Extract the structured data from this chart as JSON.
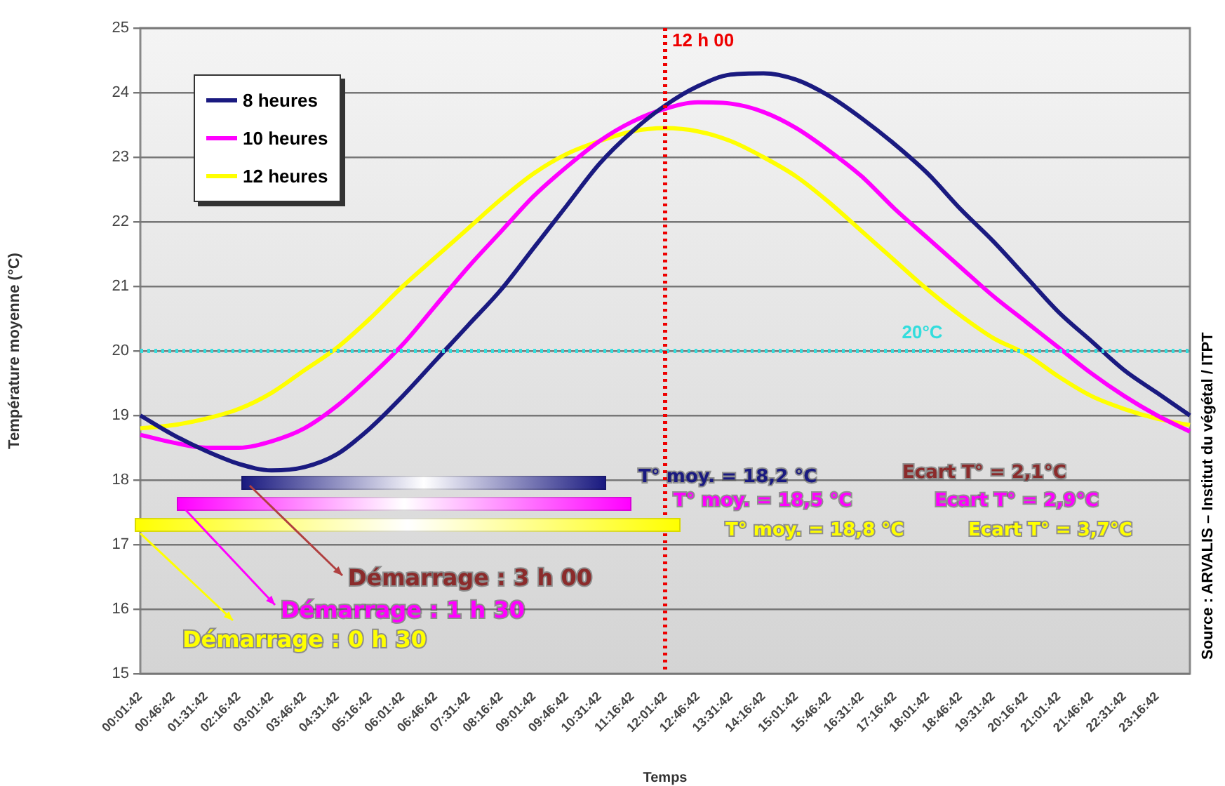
{
  "chart_data": {
    "type": "line",
    "xlabel": "Temps",
    "ylabel": "Température moyenne (°C)",
    "categories": [
      "00:01:42",
      "00:46:42",
      "01:31:42",
      "02:16:42",
      "03:01:42",
      "03:46:42",
      "04:31:42",
      "05:16:42",
      "06:01:42",
      "06:46:42",
      "07:31:42",
      "08:16:42",
      "09:01:42",
      "09:46:42",
      "10:31:42",
      "11:16:42",
      "12:01:42",
      "12:46:42",
      "13:31:42",
      "14:16:42",
      "15:01:42",
      "15:46:42",
      "16:31:42",
      "17:16:42",
      "18:01:42",
      "18:46:42",
      "19:31:42",
      "20:16:42",
      "21:01:42",
      "21:46:42",
      "22:31:42",
      "23:16:42",
      null
    ],
    "series": [
      {
        "name": "8 heures",
        "color": "#1a1a80",
        "values": [
          19.0,
          18.7,
          18.45,
          18.25,
          18.15,
          18.2,
          18.4,
          18.8,
          19.3,
          19.85,
          20.4,
          20.95,
          21.6,
          22.25,
          22.9,
          23.4,
          23.8,
          24.1,
          24.28,
          24.3,
          24.2,
          23.95,
          23.6,
          23.2,
          22.75,
          22.2,
          21.7,
          21.15,
          20.6,
          20.15,
          19.7,
          19.35,
          19.0
        ]
      },
      {
        "name": "10 heures",
        "color": "#ff00ff",
        "values": [
          18.7,
          18.58,
          18.5,
          18.5,
          18.6,
          18.8,
          19.15,
          19.6,
          20.1,
          20.7,
          21.3,
          21.85,
          22.4,
          22.85,
          23.25,
          23.55,
          23.75,
          23.85,
          23.83,
          23.7,
          23.45,
          23.1,
          22.7,
          22.2,
          21.75,
          21.3,
          20.85,
          20.45,
          20.05,
          19.65,
          19.3,
          19.0,
          18.75
        ]
      },
      {
        "name": "12 heures",
        "color": "#ffff00",
        "values": [
          18.8,
          18.85,
          18.95,
          19.1,
          19.35,
          19.7,
          20.05,
          20.5,
          21.0,
          21.45,
          21.9,
          22.35,
          22.75,
          23.05,
          23.25,
          23.4,
          23.45,
          23.4,
          23.25,
          23.0,
          22.7,
          22.3,
          21.85,
          21.4,
          20.95,
          20.55,
          20.2,
          19.95,
          19.6,
          19.3,
          19.1,
          18.95,
          18.85
        ]
      }
    ],
    "ylim": [
      15,
      25
    ],
    "yticks": [
      15,
      16,
      17,
      18,
      19,
      20,
      21,
      22,
      23,
      24,
      25
    ],
    "grid": "y",
    "legend": "top left",
    "marker": "none",
    "line_style": "solid",
    "ref_lines": [
      {
        "axis": "y",
        "value": 20,
        "label": "20°C",
        "color": "#33dddd",
        "line_style": "dotted"
      },
      {
        "axis": "x",
        "value": "12:01:42",
        "label": "12 h 00",
        "color": "#ee0000",
        "line_style": "dotted"
      }
    ],
    "annotations": [
      "T° moy. = 18,2 °C",
      "T° moy. = 18,5 °C",
      "T° moy. = 18,8 °C",
      "Ecart T° = 2,1°C",
      "Ecart T° = 2,9°C",
      "Ecart T° = 3,7°C",
      "Démarrage : 3 h 00",
      "Démarrage : 1 h 30",
      "Démarrage : 0 h 30",
      "Source : ARVALIS – Institut du végétal / ITPT"
    ]
  }
}
